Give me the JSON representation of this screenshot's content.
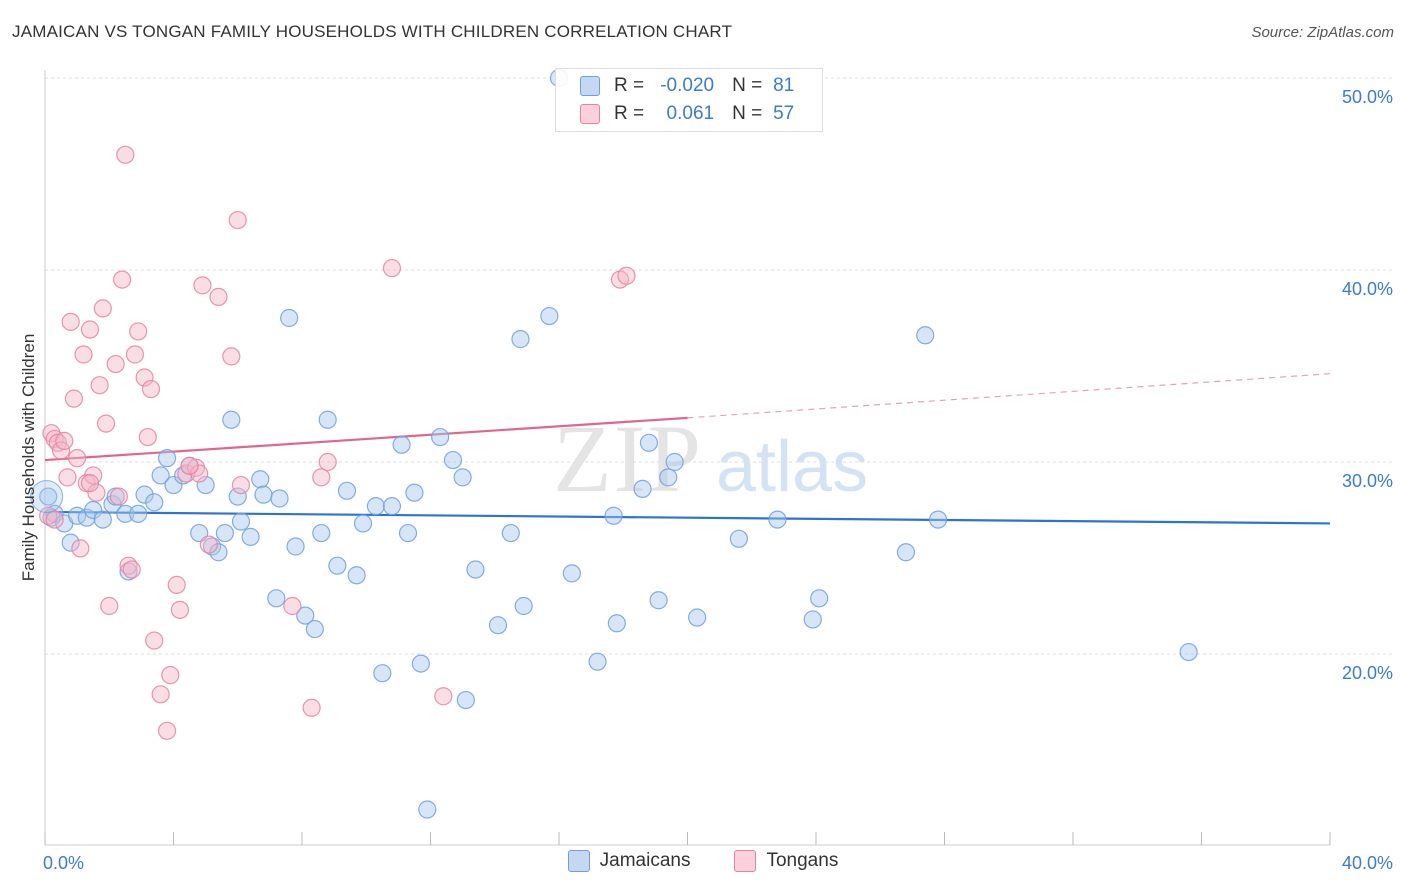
{
  "title": "JAMAICAN VS TONGAN FAMILY HOUSEHOLDS WITH CHILDREN CORRELATION CHART",
  "source": "Source: ZipAtlas.com",
  "watermark": {
    "zip": "ZIP",
    "atlas": "atlas"
  },
  "legend": {
    "rows": [
      {
        "r_label": "R = ",
        "r_value": "-0.020",
        "n_label": "N = ",
        "n_value": "81",
        "color": "#a7c7ee"
      },
      {
        "r_label": "R = ",
        "r_value": " 0.061",
        "n_label": "N = ",
        "n_value": "57",
        "color": "#f5b5c8"
      }
    ]
  },
  "bottom_legend": [
    {
      "label": "Jamaicans",
      "color": "#a7c7ee"
    },
    {
      "label": "Tongans",
      "color": "#f5b5c8"
    }
  ],
  "chart_data": {
    "type": "scatter",
    "title": "JAMAICAN VS TONGAN FAMILY HOUSEHOLDS WITH CHILDREN CORRELATION CHART",
    "xlabel": "",
    "ylabel": "Family Households with Children",
    "xlim": [
      0,
      40
    ],
    "ylim": [
      10,
      51
    ],
    "x_ticks": [
      0,
      4,
      8,
      12,
      16,
      20,
      24,
      28,
      32,
      36,
      40
    ],
    "x_tick_labels": {
      "0": "0.0%",
      "40": "40.0%"
    },
    "y_ticks": [
      20,
      30,
      40,
      50
    ],
    "y_tick_labels": [
      "20.0%",
      "30.0%",
      "40.0%",
      "50.0%"
    ],
    "grid": "horizontal dashed",
    "legend_position": "top-center",
    "series": [
      {
        "name": "Jamaicans",
        "color": "#6fa0dd",
        "fill": "#a7c7ee",
        "trend": {
          "x": [
            0,
            40
          ],
          "y": [
            27.4,
            26.8
          ],
          "style": "solid"
        },
        "points": [
          [
            0.1,
            28.2
          ],
          [
            0.2,
            27.1
          ],
          [
            0.3,
            27.3
          ],
          [
            0.6,
            26.8
          ],
          [
            0.8,
            25.8
          ],
          [
            1.0,
            27.2
          ],
          [
            1.3,
            27.1
          ],
          [
            1.5,
            27.5
          ],
          [
            1.8,
            27.0
          ],
          [
            2.1,
            27.8
          ],
          [
            2.2,
            28.2
          ],
          [
            2.5,
            27.3
          ],
          [
            2.6,
            24.3
          ],
          [
            2.9,
            27.3
          ],
          [
            3.1,
            28.3
          ],
          [
            3.4,
            27.9
          ],
          [
            3.6,
            29.3
          ],
          [
            3.8,
            30.2
          ],
          [
            4.0,
            28.8
          ],
          [
            4.3,
            29.3
          ],
          [
            4.5,
            29.8
          ],
          [
            4.8,
            26.3
          ],
          [
            5.0,
            28.8
          ],
          [
            5.2,
            25.6
          ],
          [
            5.4,
            25.3
          ],
          [
            5.6,
            26.3
          ],
          [
            5.8,
            32.2
          ],
          [
            6.0,
            28.2
          ],
          [
            6.1,
            26.9
          ],
          [
            6.4,
            26.1
          ],
          [
            6.7,
            29.1
          ],
          [
            6.8,
            28.3
          ],
          [
            7.2,
            22.9
          ],
          [
            7.3,
            28.1
          ],
          [
            7.6,
            37.5
          ],
          [
            7.8,
            25.6
          ],
          [
            8.1,
            22.0
          ],
          [
            8.4,
            21.3
          ],
          [
            8.6,
            26.3
          ],
          [
            8.8,
            32.2
          ],
          [
            9.1,
            24.6
          ],
          [
            9.4,
            28.5
          ],
          [
            9.7,
            24.1
          ],
          [
            9.9,
            26.8
          ],
          [
            10.3,
            27.7
          ],
          [
            10.5,
            19.0
          ],
          [
            10.8,
            27.7
          ],
          [
            11.1,
            30.9
          ],
          [
            11.3,
            26.3
          ],
          [
            11.5,
            28.4
          ],
          [
            11.7,
            19.5
          ],
          [
            11.9,
            11.9
          ],
          [
            12.3,
            31.3
          ],
          [
            12.7,
            30.1
          ],
          [
            13.0,
            29.2
          ],
          [
            13.1,
            17.6
          ],
          [
            13.4,
            24.4
          ],
          [
            14.1,
            21.5
          ],
          [
            14.5,
            26.3
          ],
          [
            14.8,
            36.4
          ],
          [
            14.9,
            22.5
          ],
          [
            15.7,
            37.6
          ],
          [
            16.0,
            50.0
          ],
          [
            16.4,
            24.2
          ],
          [
            17.2,
            19.6
          ],
          [
            17.7,
            27.2
          ],
          [
            17.8,
            21.6
          ],
          [
            18.6,
            28.6
          ],
          [
            18.8,
            31.0
          ],
          [
            19.1,
            22.8
          ],
          [
            19.4,
            29.2
          ],
          [
            19.6,
            30.0
          ],
          [
            20.3,
            21.9
          ],
          [
            21.6,
            26.0
          ],
          [
            22.8,
            27.0
          ],
          [
            23.9,
            21.8
          ],
          [
            24.1,
            22.9
          ],
          [
            26.8,
            25.3
          ],
          [
            27.4,
            36.6
          ],
          [
            27.8,
            27.0
          ],
          [
            35.6,
            20.1
          ]
        ]
      },
      {
        "name": "Tongans",
        "color": "#e8829f",
        "fill": "#f5b5c8",
        "trend": {
          "x": [
            0,
            20
          ],
          "y": [
            30.1,
            32.3
          ],
          "style": "solid",
          "extension": {
            "x": [
              20,
              40
            ],
            "y": [
              32.3,
              34.6
            ],
            "style": "dashed"
          }
        },
        "points": [
          [
            0.1,
            27.2
          ],
          [
            0.2,
            31.5
          ],
          [
            0.3,
            31.2
          ],
          [
            0.4,
            31.0
          ],
          [
            0.5,
            30.6
          ],
          [
            0.6,
            31.1
          ],
          [
            0.7,
            29.2
          ],
          [
            0.8,
            37.3
          ],
          [
            0.9,
            33.3
          ],
          [
            1.0,
            30.2
          ],
          [
            1.1,
            25.5
          ],
          [
            1.2,
            35.6
          ],
          [
            1.3,
            28.9
          ],
          [
            1.4,
            36.9
          ],
          [
            1.5,
            29.3
          ],
          [
            1.6,
            28.4
          ],
          [
            1.7,
            34.0
          ],
          [
            1.8,
            38.0
          ],
          [
            1.9,
            32.0
          ],
          [
            2.0,
            22.5
          ],
          [
            2.2,
            35.1
          ],
          [
            2.3,
            28.2
          ],
          [
            2.4,
            39.5
          ],
          [
            2.5,
            46.0
          ],
          [
            2.6,
            24.6
          ],
          [
            2.7,
            24.4
          ],
          [
            2.8,
            35.6
          ],
          [
            2.9,
            36.8
          ],
          [
            3.1,
            34.4
          ],
          [
            3.2,
            31.3
          ],
          [
            3.3,
            33.8
          ],
          [
            3.4,
            20.7
          ],
          [
            3.6,
            17.9
          ],
          [
            3.8,
            16.0
          ],
          [
            3.9,
            18.9
          ],
          [
            4.1,
            23.6
          ],
          [
            4.2,
            22.3
          ],
          [
            4.4,
            29.4
          ],
          [
            4.7,
            29.7
          ],
          [
            4.8,
            29.4
          ],
          [
            4.9,
            39.2
          ],
          [
            5.1,
            25.7
          ],
          [
            5.4,
            38.6
          ],
          [
            5.8,
            35.5
          ],
          [
            6.0,
            42.6
          ],
          [
            6.1,
            28.8
          ],
          [
            7.7,
            22.5
          ],
          [
            8.3,
            17.2
          ],
          [
            8.6,
            29.2
          ],
          [
            8.8,
            30.0
          ],
          [
            10.8,
            40.1
          ],
          [
            12.4,
            17.8
          ],
          [
            17.9,
            39.5
          ],
          [
            18.1,
            39.7
          ],
          [
            0.3,
            27.0
          ],
          [
            1.4,
            28.9
          ],
          [
            4.5,
            29.8
          ]
        ]
      }
    ]
  }
}
